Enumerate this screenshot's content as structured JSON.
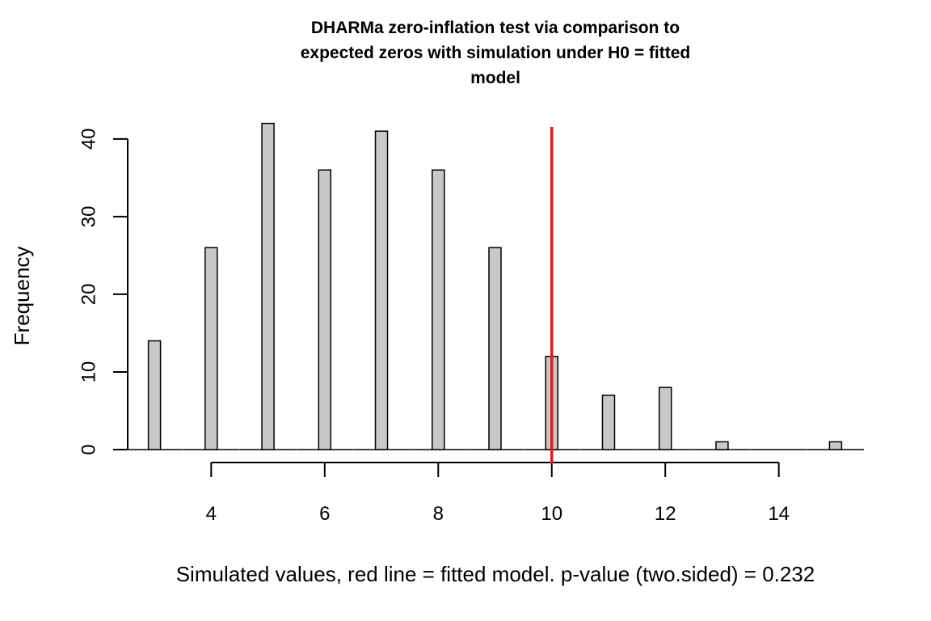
{
  "chart_data": {
    "type": "bar",
    "title_lines": [
      "DHARMa zero-inflation test via comparison to",
      "expected zeros with simulation under H0 = fitted",
      "model"
    ],
    "xlabel": "Simulated values, red line = fitted model. p-value (two.sided) = 0.232",
    "ylabel": "Frequency",
    "x": [
      3,
      4,
      5,
      6,
      7,
      8,
      9,
      10,
      11,
      12,
      13,
      15
    ],
    "values": [
      14,
      26,
      42,
      36,
      41,
      36,
      26,
      12,
      7,
      8,
      1,
      1
    ],
    "xlim": [
      2.6,
      15.4
    ],
    "ylim": [
      0,
      43
    ],
    "x_ticks": [
      4,
      6,
      8,
      10,
      12,
      14
    ],
    "x_tick_labels": [
      "4",
      "6",
      "8",
      "10",
      "12",
      "14"
    ],
    "y_ticks": [
      0,
      10,
      20,
      30,
      40
    ],
    "y_tick_labels": [
      "0",
      "10",
      "20",
      "30",
      "40"
    ],
    "observed_value": 10,
    "bar_color": "#c8c8c8",
    "bar_edge_color": "#000000",
    "observed_line_color": "#e41a1c",
    "grid": false,
    "legend": "none"
  }
}
